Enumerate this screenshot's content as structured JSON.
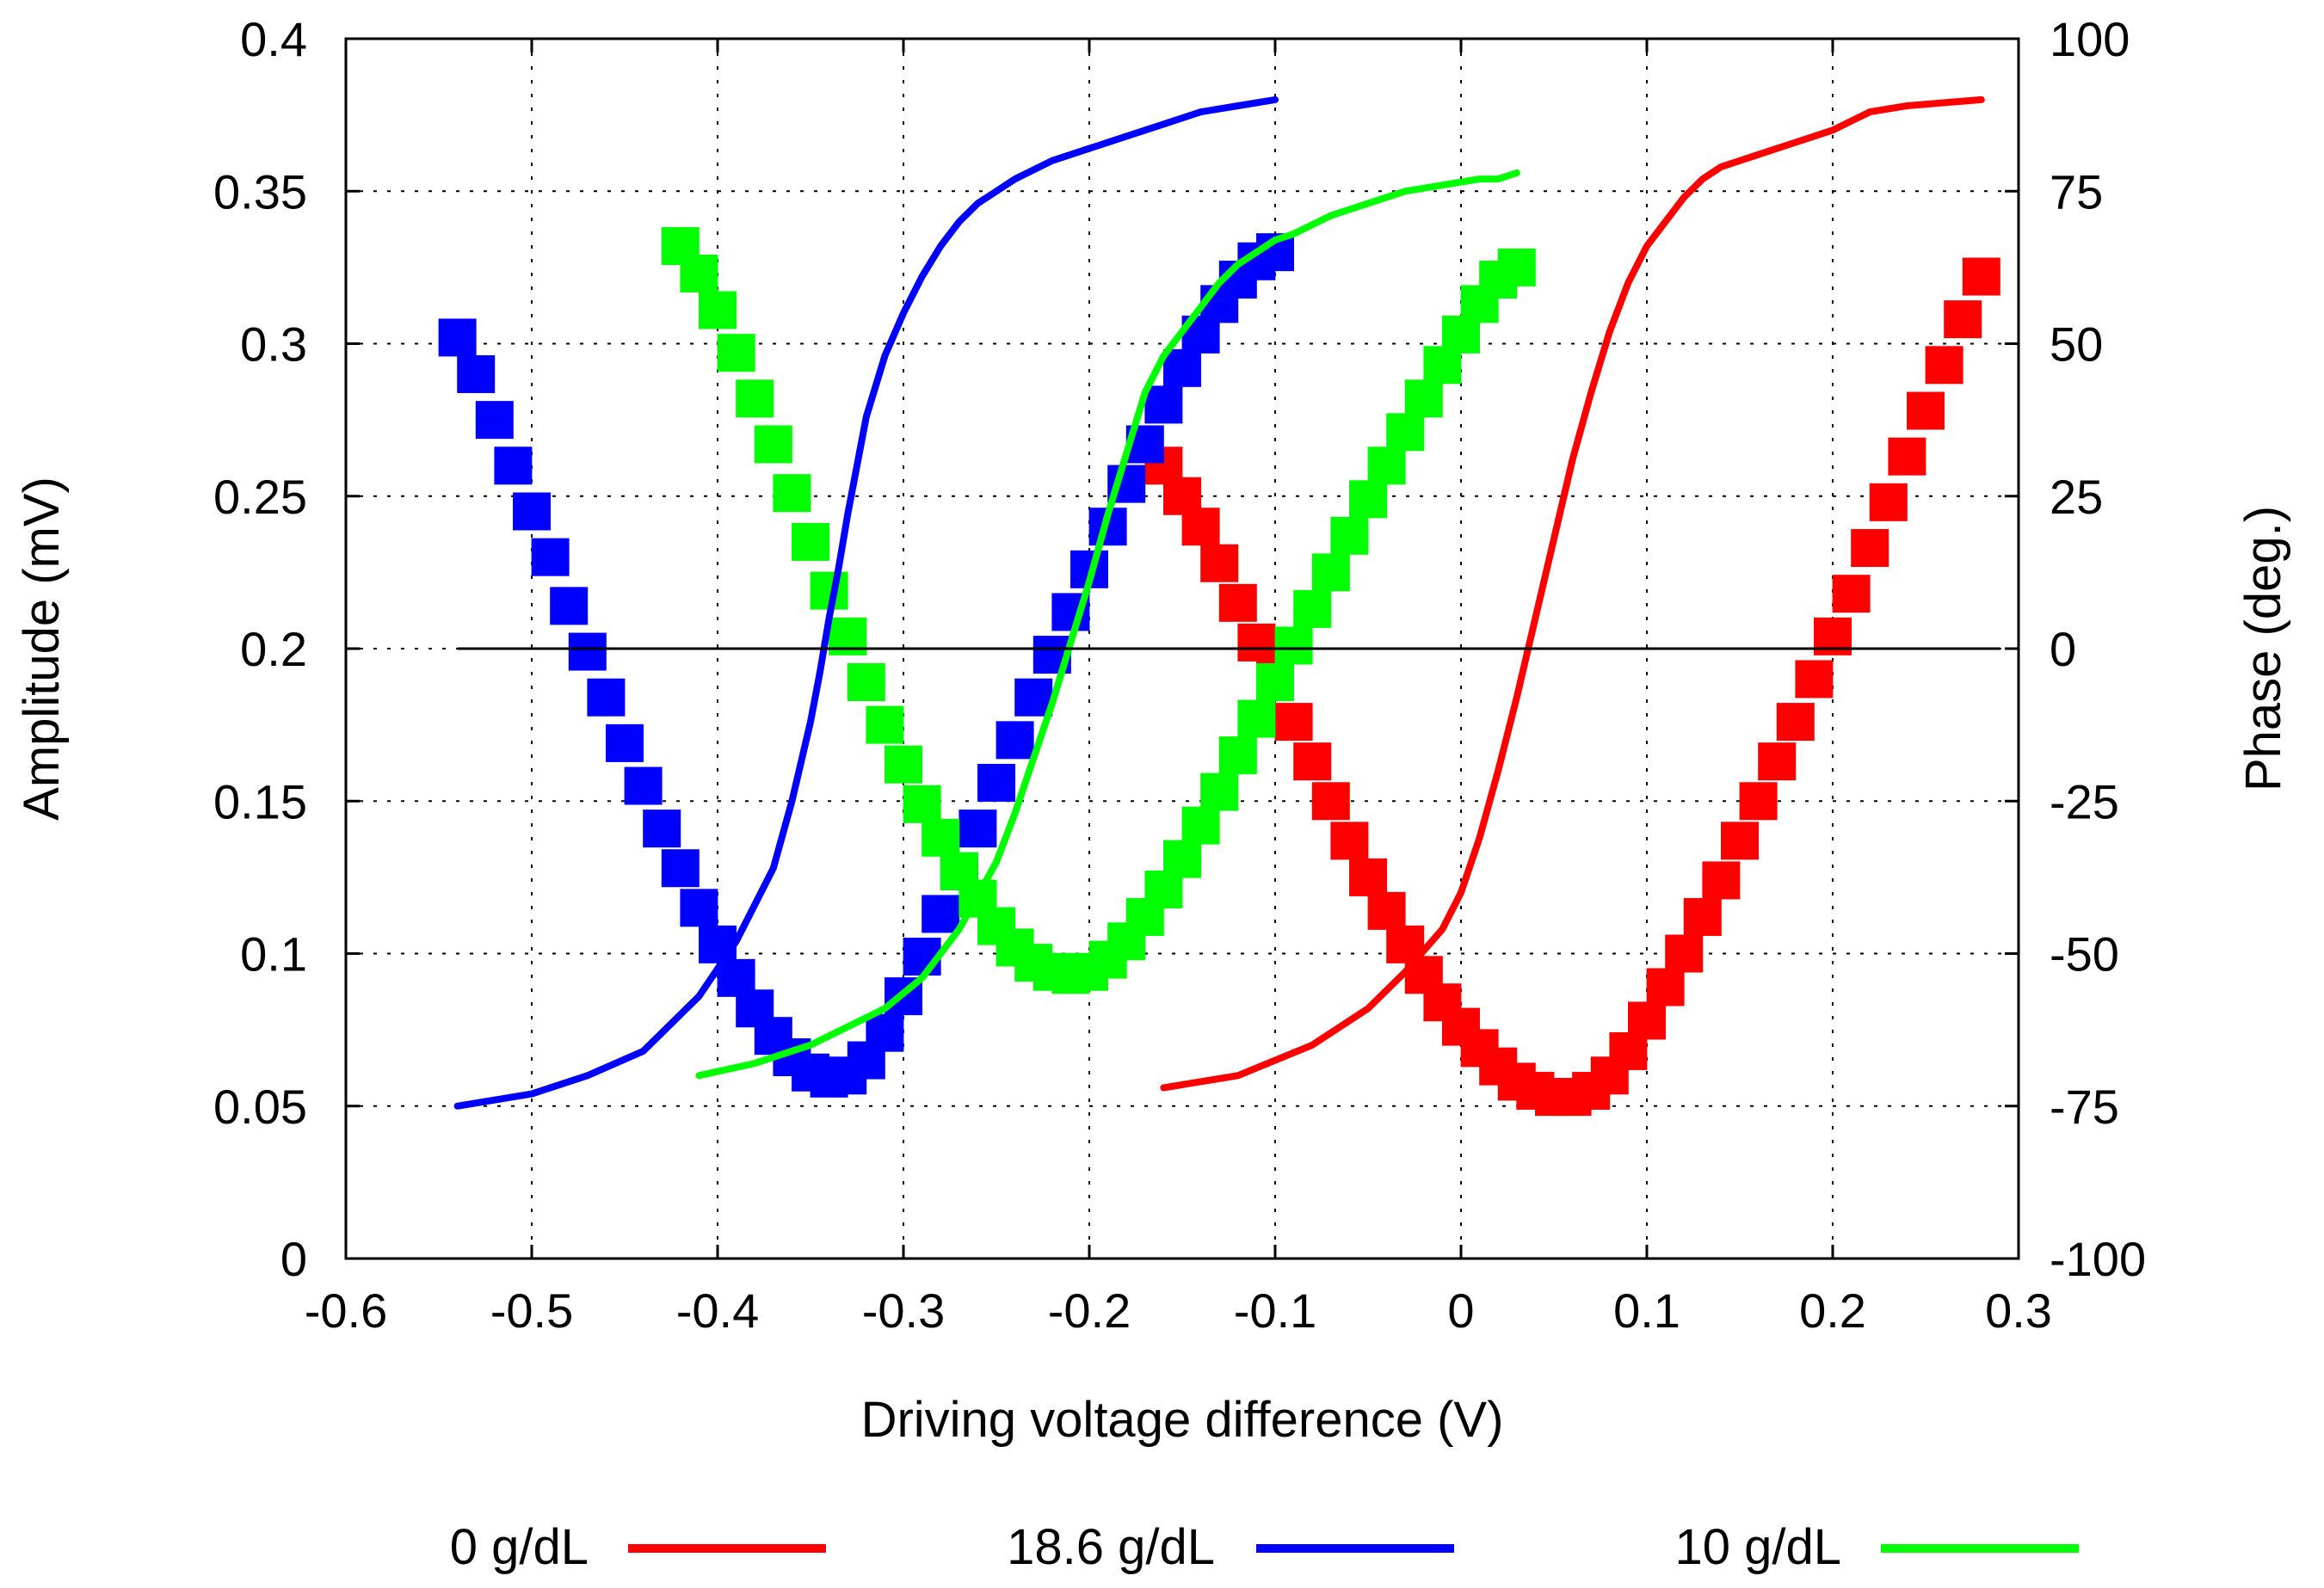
{
  "chart_data": {
    "type": "line",
    "title": "",
    "xlabel": "Driving voltage difference (V)",
    "ylabel": "Amplitude (mV)",
    "y2label": "Phase (deg.)",
    "xlim": [
      -0.6,
      0.3
    ],
    "ylim": [
      0,
      0.4
    ],
    "y2lim": [
      -100,
      100
    ],
    "grid": true,
    "legend_position": "bottom",
    "x_ticks": [
      "-0.6",
      "-0.5",
      "-0.4",
      "-0.3",
      "-0.2",
      "-0.1",
      "0",
      "0.1",
      "0.2",
      "0.3"
    ],
    "y_ticks": [
      "0",
      "0.05",
      "0.1",
      "0.15",
      "0.2",
      "0.25",
      "0.3",
      "0.35",
      "0.4"
    ],
    "y2_ticks": [
      "-100",
      "-75",
      "-50",
      "-25",
      "0",
      "25",
      "50",
      "75",
      "100"
    ],
    "reference_line": {
      "axis": "y2",
      "value": 0,
      "x_range": [
        -0.54,
        0.29
      ]
    },
    "series": [
      {
        "name": "0 g/dL",
        "color": "#ff0000",
        "amplitude": {
          "x": [
            -0.16,
            -0.15,
            -0.14,
            -0.13,
            -0.12,
            -0.11,
            -0.1,
            -0.09,
            -0.08,
            -0.07,
            -0.06,
            -0.05,
            -0.04,
            -0.03,
            -0.02,
            -0.01,
            0,
            0.01,
            0.02,
            0.03,
            0.04,
            0.05,
            0.06,
            0.07,
            0.08,
            0.09,
            0.1,
            0.11,
            0.12,
            0.13,
            0.14,
            0.15,
            0.16,
            0.17,
            0.18,
            0.19,
            0.2,
            0.21,
            0.22,
            0.23,
            0.24,
            0.25,
            0.26,
            0.27,
            0.28
          ],
          "y": [
            0.26,
            0.25,
            0.24,
            0.228,
            0.215,
            0.202,
            0.19,
            0.176,
            0.163,
            0.15,
            0.137,
            0.125,
            0.114,
            0.103,
            0.093,
            0.084,
            0.076,
            0.069,
            0.063,
            0.058,
            0.055,
            0.053,
            0.053,
            0.055,
            0.06,
            0.068,
            0.078,
            0.089,
            0.1,
            0.112,
            0.124,
            0.137,
            0.15,
            0.163,
            0.176,
            0.19,
            0.204,
            0.218,
            0.233,
            0.248,
            0.263,
            0.278,
            0.293,
            0.308,
            0.322
          ]
        },
        "phase": {
          "x": [
            -0.16,
            -0.12,
            -0.08,
            -0.05,
            -0.03,
            -0.01,
            0.0,
            0.01,
            0.02,
            0.03,
            0.04,
            0.05,
            0.06,
            0.07,
            0.08,
            0.09,
            0.1,
            0.11,
            0.12,
            0.13,
            0.14,
            0.16,
            0.18,
            0.2,
            0.22,
            0.24,
            0.26,
            0.28
          ],
          "y": [
            -72,
            -70,
            -65,
            -59,
            -53,
            -46,
            -40,
            -31,
            -20,
            -8,
            5,
            18,
            31,
            42,
            52,
            60,
            66,
            70,
            74,
            77,
            79,
            81,
            83,
            85,
            88,
            89,
            89.5,
            90
          ]
        }
      },
      {
        "name": "18.6 g/dL",
        "color": "#0000ff",
        "amplitude": {
          "x": [
            -0.54,
            -0.53,
            -0.52,
            -0.51,
            -0.5,
            -0.49,
            -0.48,
            -0.47,
            -0.46,
            -0.45,
            -0.44,
            -0.43,
            -0.42,
            -0.41,
            -0.4,
            -0.39,
            -0.38,
            -0.37,
            -0.36,
            -0.35,
            -0.34,
            -0.33,
            -0.32,
            -0.31,
            -0.3,
            -0.29,
            -0.28,
            -0.27,
            -0.26,
            -0.25,
            -0.24,
            -0.23,
            -0.22,
            -0.21,
            -0.2,
            -0.19,
            -0.18,
            -0.17,
            -0.16,
            -0.15,
            -0.14,
            -0.13,
            -0.12,
            -0.11,
            -0.1
          ],
          "y": [
            0.302,
            0.29,
            0.275,
            0.26,
            0.245,
            0.23,
            0.214,
            0.199,
            0.184,
            0.169,
            0.155,
            0.141,
            0.128,
            0.115,
            0.103,
            0.092,
            0.082,
            0.073,
            0.066,
            0.061,
            0.059,
            0.06,
            0.065,
            0.074,
            0.086,
            0.099,
            0.113,
            0.127,
            0.141,
            0.156,
            0.17,
            0.184,
            0.198,
            0.212,
            0.226,
            0.24,
            0.254,
            0.267,
            0.28,
            0.292,
            0.303,
            0.313,
            0.321,
            0.327,
            0.33
          ]
        },
        "phase": {
          "x": [
            -0.54,
            -0.5,
            -0.47,
            -0.44,
            -0.41,
            -0.39,
            -0.37,
            -0.36,
            -0.35,
            -0.345,
            -0.34,
            -0.335,
            -0.33,
            -0.32,
            -0.31,
            -0.3,
            -0.29,
            -0.28,
            -0.27,
            -0.26,
            -0.25,
            -0.24,
            -0.22,
            -0.2,
            -0.18,
            -0.16,
            -0.14,
            -0.12,
            -0.1
          ],
          "y": [
            -75,
            -73,
            -70,
            -66,
            -57,
            -48,
            -36,
            -25,
            -12,
            -4,
            5,
            13,
            22,
            38,
            48,
            55,
            61,
            66,
            70,
            73,
            75,
            77,
            80,
            82,
            84,
            86,
            88,
            89,
            90
          ]
        }
      },
      {
        "name": "10 g/dL",
        "color": "#00ff00",
        "amplitude": {
          "x": [
            -0.42,
            -0.41,
            -0.4,
            -0.39,
            -0.38,
            -0.37,
            -0.36,
            -0.35,
            -0.34,
            -0.33,
            -0.32,
            -0.31,
            -0.3,
            -0.29,
            -0.28,
            -0.27,
            -0.26,
            -0.25,
            -0.24,
            -0.23,
            -0.22,
            -0.21,
            -0.2,
            -0.19,
            -0.18,
            -0.17,
            -0.16,
            -0.15,
            -0.14,
            -0.13,
            -0.12,
            -0.11,
            -0.1,
            -0.09,
            -0.08,
            -0.07,
            -0.06,
            -0.05,
            -0.04,
            -0.03,
            -0.02,
            -0.01,
            0,
            0.01,
            0.02,
            0.03
          ],
          "y": [
            0.332,
            0.323,
            0.311,
            0.297,
            0.282,
            0.267,
            0.251,
            0.235,
            0.219,
            0.204,
            0.189,
            0.175,
            0.162,
            0.149,
            0.138,
            0.127,
            0.118,
            0.109,
            0.102,
            0.097,
            0.094,
            0.093,
            0.094,
            0.098,
            0.104,
            0.112,
            0.121,
            0.131,
            0.142,
            0.153,
            0.165,
            0.177,
            0.189,
            0.201,
            0.213,
            0.225,
            0.237,
            0.249,
            0.26,
            0.271,
            0.282,
            0.293,
            0.303,
            0.313,
            0.321,
            0.325
          ]
        },
        "phase": {
          "x": [
            -0.41,
            -0.38,
            -0.35,
            -0.33,
            -0.31,
            -0.29,
            -0.27,
            -0.25,
            -0.24,
            -0.23,
            -0.22,
            -0.21,
            -0.2,
            -0.19,
            -0.18,
            -0.17,
            -0.16,
            -0.15,
            -0.14,
            -0.13,
            -0.12,
            -0.11,
            -0.1,
            -0.09,
            -0.07,
            -0.05,
            -0.03,
            -0.01,
            0.01,
            0.02,
            0.03
          ],
          "y": [
            -70,
            -68,
            -65,
            -62,
            -59,
            -54,
            -46,
            -35,
            -27,
            -18,
            -9,
            1,
            11,
            22,
            32,
            42,
            48,
            52,
            56,
            60,
            63,
            65,
            67,
            68,
            71,
            73,
            75,
            76,
            77,
            77,
            78
          ]
        }
      }
    ]
  }
}
